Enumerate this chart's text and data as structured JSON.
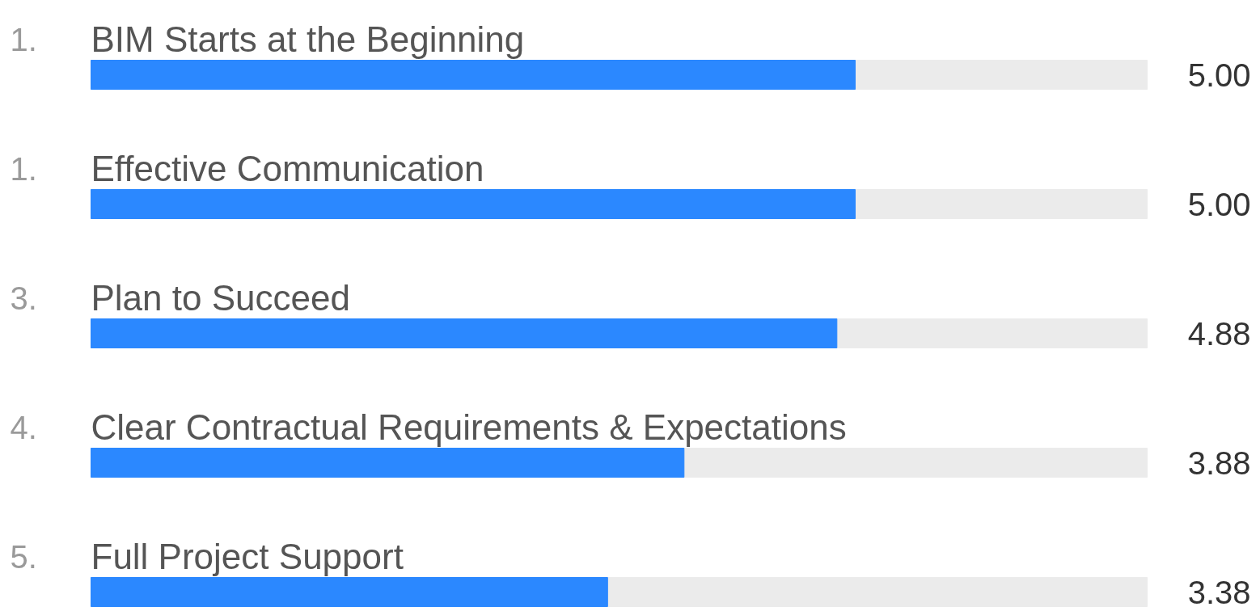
{
  "chart_data": {
    "type": "bar",
    "orientation": "horizontal",
    "categories": [
      "BIM Starts at the Beginning",
      "Effective Communication",
      "Plan to Succeed",
      "Clear Contractual Requirements & Expectations",
      "Full Project Support"
    ],
    "values": [
      5.0,
      5.0,
      4.88,
      3.88,
      3.38
    ],
    "value_labels": [
      "5.00",
      "5.00",
      "4.88",
      "3.88",
      "3.38"
    ],
    "annotations": [
      "1.",
      "1.",
      "3.",
      "4.",
      "5."
    ],
    "color": "#2b88ff",
    "tick_labels": false,
    "grid": false
  }
}
